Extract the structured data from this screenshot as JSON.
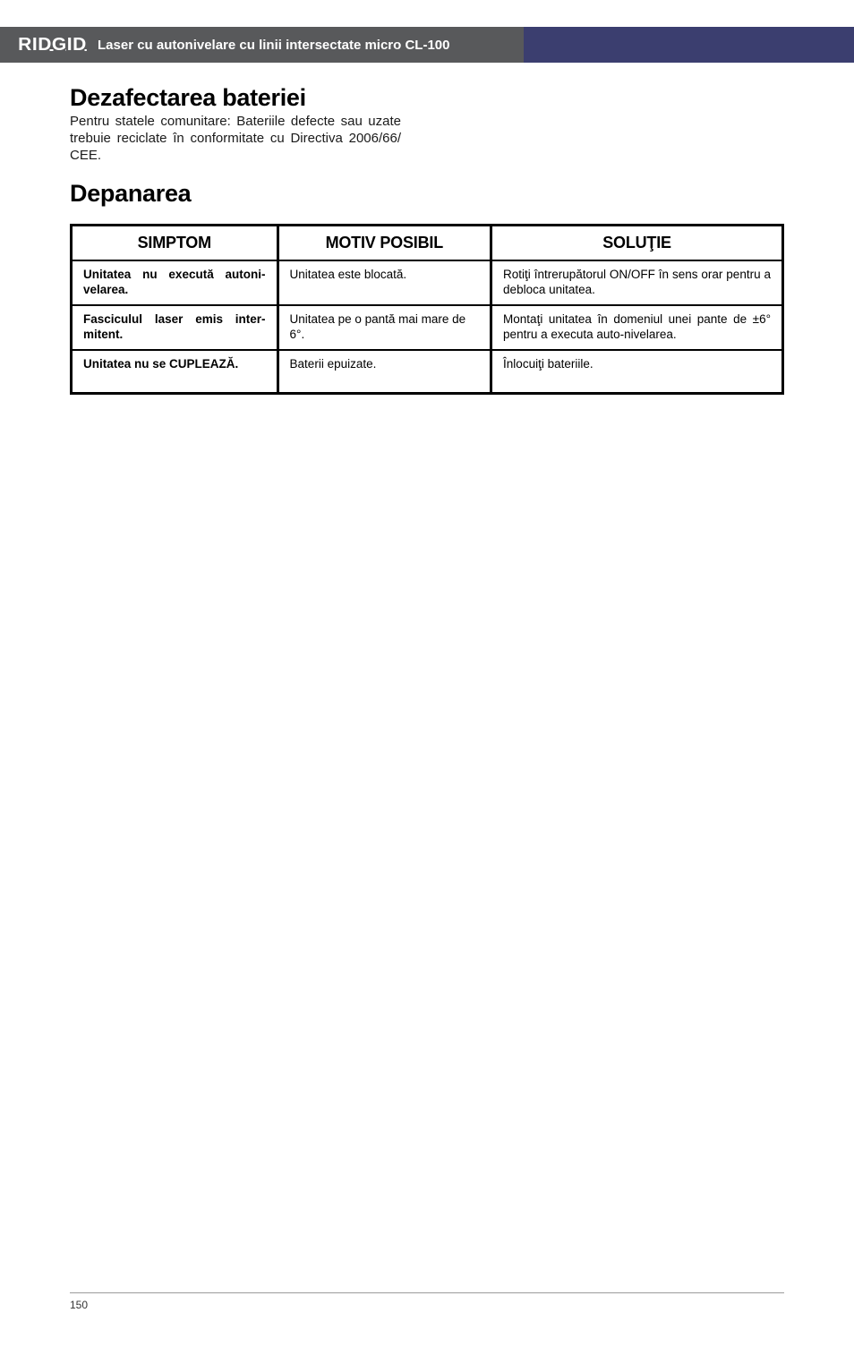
{
  "header": {
    "logo": "RIDGID",
    "title": "Laser cu autonivelare cu linii intersectate micro CL-100"
  },
  "sections": {
    "battery_disposal": {
      "heading": "Dezafectarea bateriei",
      "text": "Pentru statele comunitare: Bateriile defecte sau uzate trebuie reciclate în conformitate cu Directiva 2006/66/ CEE."
    },
    "troubleshooting": {
      "heading": "Depanarea"
    }
  },
  "table": {
    "headers": {
      "symptom": "SIMPTOM",
      "cause": "MOTIV POSIBIL",
      "solution": "SOLUŢIE"
    },
    "rows": [
      {
        "symptom": "Unitatea nu execută autoni­velarea.",
        "cause": "Unitatea este blocată.",
        "solution": "Rotiţi întrerupătorul ON/OFF în sens orar pentru a debloca unitatea."
      },
      {
        "symptom": "Fasciculul laser emis inter­mitent.",
        "cause": "Unitatea pe o pantă mai mare de 6°.",
        "solution": "Montaţi unitatea în domeniul unei pante de ±6° pentru a executa auto-nivelarea."
      },
      {
        "symptom": "Unitatea nu se CUPLEAZĂ.",
        "cause": "Baterii epuizate.",
        "solution": "Înlocuiţi bateriile."
      }
    ]
  },
  "footer": {
    "page": "150"
  }
}
